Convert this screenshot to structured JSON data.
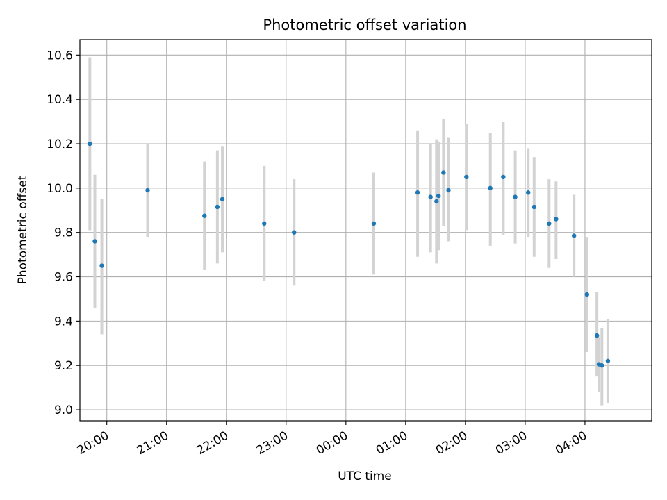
{
  "chart_data": {
    "type": "scatter",
    "title": "Photometric offset variation",
    "xlabel": "UTC time",
    "ylabel": "Photometric offset",
    "x_ticks": [
      "20:00",
      "21:00",
      "22:00",
      "23:00",
      "00:00",
      "01:00",
      "02:00",
      "03:00",
      "04:00"
    ],
    "y_ticks": [
      "9.0",
      "9.2",
      "9.4",
      "9.6",
      "9.8",
      "10.0",
      "10.2",
      "10.4",
      "10.6"
    ],
    "xlim": [
      "19:33",
      "05:07"
    ],
    "ylim": [
      8.95,
      10.67
    ],
    "grid": true,
    "colors": {
      "point": "#1f77b4",
      "errorbar": "#d3d3d3",
      "grid": "#b0b0b0"
    },
    "points": [
      {
        "t": "19:43",
        "y": 10.2,
        "lo": 9.81,
        "hi": 10.59
      },
      {
        "t": "19:48",
        "y": 9.76,
        "lo": 9.46,
        "hi": 10.06
      },
      {
        "t": "19:55",
        "y": 9.65,
        "lo": 9.34,
        "hi": 9.95
      },
      {
        "t": "20:41",
        "y": 9.99,
        "lo": 9.78,
        "hi": 10.2
      },
      {
        "t": "21:38",
        "y": 9.875,
        "lo": 9.63,
        "hi": 10.12
      },
      {
        "t": "21:51",
        "y": 9.915,
        "lo": 9.66,
        "hi": 10.17
      },
      {
        "t": "21:56",
        "y": 9.95,
        "lo": 9.71,
        "hi": 10.19
      },
      {
        "t": "22:38",
        "y": 9.84,
        "lo": 9.58,
        "hi": 10.1
      },
      {
        "t": "23:08",
        "y": 9.8,
        "lo": 9.56,
        "hi": 10.04
      },
      {
        "t": "00:28",
        "y": 9.84,
        "lo": 9.61,
        "hi": 10.07
      },
      {
        "t": "01:12",
        "y": 9.98,
        "lo": 9.69,
        "hi": 10.26
      },
      {
        "t": "01:25",
        "y": 9.96,
        "lo": 9.71,
        "hi": 10.2
      },
      {
        "t": "01:31",
        "y": 9.94,
        "lo": 9.66,
        "hi": 10.22
      },
      {
        "t": "01:33",
        "y": 9.965,
        "lo": 9.72,
        "hi": 10.21
      },
      {
        "t": "01:38",
        "y": 10.07,
        "lo": 9.83,
        "hi": 10.31
      },
      {
        "t": "01:43",
        "y": 9.99,
        "lo": 9.76,
        "hi": 10.23
      },
      {
        "t": "02:01",
        "y": 10.05,
        "lo": 9.81,
        "hi": 10.29
      },
      {
        "t": "02:25",
        "y": 10.0,
        "lo": 9.74,
        "hi": 10.25
      },
      {
        "t": "02:38",
        "y": 10.05,
        "lo": 9.79,
        "hi": 10.3
      },
      {
        "t": "02:50",
        "y": 9.96,
        "lo": 9.75,
        "hi": 10.17
      },
      {
        "t": "03:03",
        "y": 9.98,
        "lo": 9.78,
        "hi": 10.18
      },
      {
        "t": "03:09",
        "y": 9.915,
        "lo": 9.69,
        "hi": 10.14
      },
      {
        "t": "03:24",
        "y": 9.84,
        "lo": 9.64,
        "hi": 10.04
      },
      {
        "t": "03:31",
        "y": 9.86,
        "lo": 9.68,
        "hi": 10.03
      },
      {
        "t": "03:49",
        "y": 9.785,
        "lo": 9.6,
        "hi": 9.97
      },
      {
        "t": "04:02",
        "y": 9.52,
        "lo": 9.26,
        "hi": 9.78
      },
      {
        "t": "04:12",
        "y": 9.335,
        "lo": 9.15,
        "hi": 9.53
      },
      {
        "t": "04:14",
        "y": 9.205,
        "lo": 9.08,
        "hi": 9.33
      },
      {
        "t": "04:17",
        "y": 9.2,
        "lo": 9.02,
        "hi": 9.37
      },
      {
        "t": "04:23",
        "y": 9.22,
        "lo": 9.03,
        "hi": 9.41
      }
    ]
  }
}
